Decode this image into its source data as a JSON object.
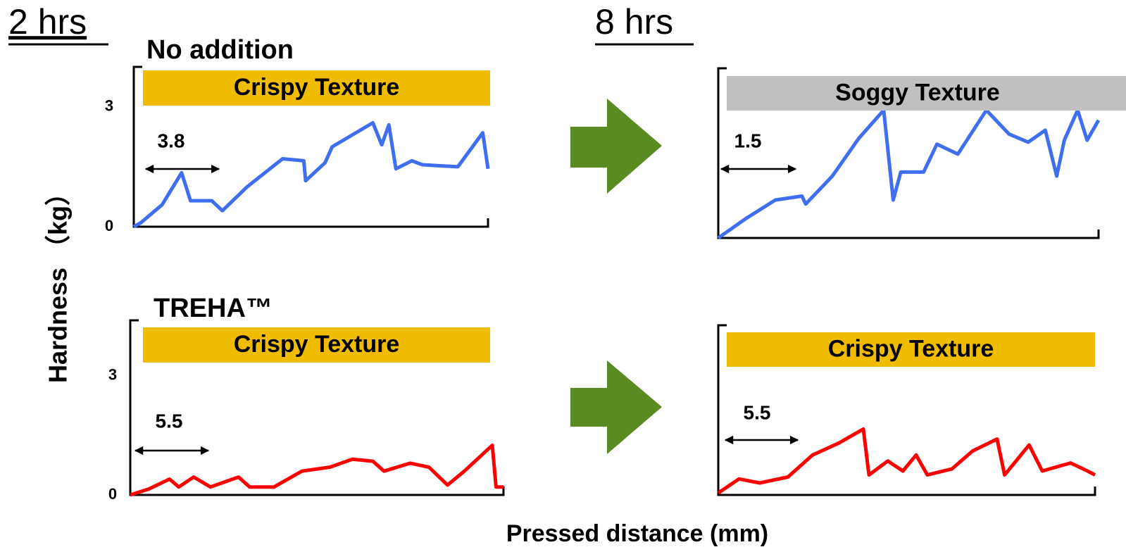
{
  "headings": [
    "2 hrs",
    "8 hrs"
  ],
  "y_label": "Hardness （kg）",
  "x_label": "Pressed distance (mm)",
  "chart_data": [
    {
      "type": "line",
      "title": "No addition",
      "banner": {
        "text": "Crispy Texture",
        "color": "#f0bc00"
      },
      "annotation": "3.8",
      "color": "#3f6ff0",
      "xlim": [
        0,
        100
      ],
      "ylim": [
        0,
        4
      ],
      "yticks": [
        0,
        3
      ],
      "x": [
        0,
        2,
        8,
        13.5,
        16,
        22,
        25,
        32,
        42,
        48,
        48.5,
        54,
        56,
        67.5,
        70,
        72,
        74,
        78.5,
        81.5,
        91.5,
        98.5,
        100
      ],
      "values": [
        0,
        0.1,
        0.55,
        1.35,
        0.65,
        0.65,
        0.4,
        1.0,
        1.7,
        1.65,
        1.15,
        1.6,
        2.0,
        2.6,
        2.05,
        2.55,
        1.45,
        1.65,
        1.55,
        1.5,
        2.35,
        1.45
      ]
    },
    {
      "type": "line",
      "title": "TREHA™",
      "banner": {
        "text": "Crispy Texture",
        "color": "#f0bc00"
      },
      "annotation": "5.5",
      "color": "#ff0000",
      "xlim": [
        0,
        100
      ],
      "ylim": [
        0,
        4.4
      ],
      "yticks": [
        0,
        3
      ],
      "x": [
        0,
        5,
        10.5,
        13,
        17,
        21.5,
        29,
        32,
        38.5,
        46,
        53.5,
        59.5,
        65,
        68,
        75,
        80,
        85,
        89.5,
        97,
        98,
        100
      ],
      "values": [
        0,
        0.15,
        0.4,
        0.2,
        0.45,
        0.2,
        0.45,
        0.2,
        0.2,
        0.6,
        0.7,
        0.9,
        0.85,
        0.6,
        0.8,
        0.7,
        0.25,
        0.6,
        1.25,
        0.2,
        0.2
      ]
    },
    {
      "type": "line",
      "banner": {
        "text": "Soggy Texture",
        "color": "#c0c0c0"
      },
      "annotation": "1.5",
      "color": "#3f6ff0",
      "xlim": [
        0,
        100
      ],
      "ylim": [
        0,
        4.25
      ],
      "x": [
        0,
        7.5,
        15,
        22,
        23,
        30,
        37,
        43.5,
        46,
        48,
        54,
        57.5,
        63,
        70.5,
        76.5,
        81.5,
        86,
        89,
        91,
        94.5,
        97,
        100
      ],
      "values": [
        0,
        0.5,
        0.95,
        1.05,
        0.85,
        1.55,
        2.5,
        3.2,
        0.95,
        1.65,
        1.65,
        2.35,
        2.1,
        3.2,
        2.6,
        2.4,
        2.7,
        1.55,
        2.45,
        3.2,
        2.45,
        2.95
      ]
    },
    {
      "type": "line",
      "banner": {
        "text": "Crispy Texture",
        "color": "#f0bc00"
      },
      "annotation": "5.5",
      "color": "#ff0000",
      "xlim": [
        0,
        100
      ],
      "ylim": [
        0,
        4.25
      ],
      "x": [
        0,
        5.5,
        11,
        18.5,
        25,
        32,
        38.5,
        40,
        45,
        49,
        52.5,
        55.5,
        62,
        67.5,
        74,
        76,
        82.5,
        86,
        93.5,
        98,
        100
      ],
      "values": [
        0.05,
        0.4,
        0.3,
        0.45,
        1.0,
        1.3,
        1.65,
        0.5,
        0.85,
        0.6,
        1.0,
        0.5,
        0.65,
        1.1,
        1.4,
        0.5,
        1.25,
        0.6,
        0.8,
        0.6,
        0.5
      ]
    }
  ]
}
